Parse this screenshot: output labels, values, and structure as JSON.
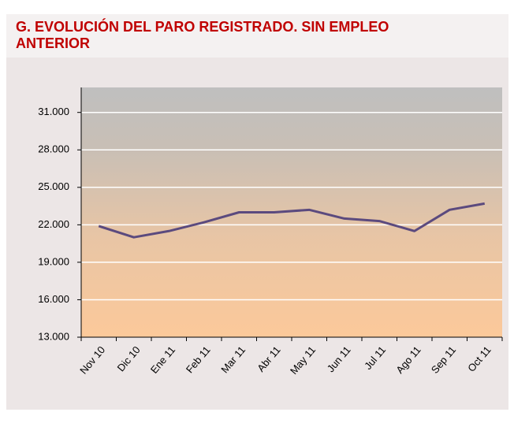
{
  "chart_data": {
    "type": "line",
    "title": "G. EVOLUCIÓN DEL PARO REGISTRADO. SIN EMPLEO ANTERIOR",
    "categories": [
      "Nov 10",
      "Dic 10",
      "Ene 11",
      "Feb 11",
      "Mar 11",
      "Abr 11",
      "May 11",
      "Jun 11",
      "Jul 11",
      "Ago 11",
      "Sep 11",
      "Oct 11"
    ],
    "values": [
      21900,
      21000,
      21500,
      22200,
      23000,
      23000,
      23200,
      22500,
      22300,
      21500,
      23200,
      23700
    ],
    "color": "#5b4a7e",
    "ylim": [
      13000,
      33000
    ],
    "yticks": [
      {
        "value": 13000,
        "label": "13.000"
      },
      {
        "value": 16000,
        "label": "16.000"
      },
      {
        "value": 19000,
        "label": "19.000"
      },
      {
        "value": 22000,
        "label": "22.000"
      },
      {
        "value": 25000,
        "label": "25.000"
      },
      {
        "value": 28000,
        "label": "28.000"
      },
      {
        "value": 31000,
        "label": "31.000"
      }
    ],
    "grid": true
  }
}
